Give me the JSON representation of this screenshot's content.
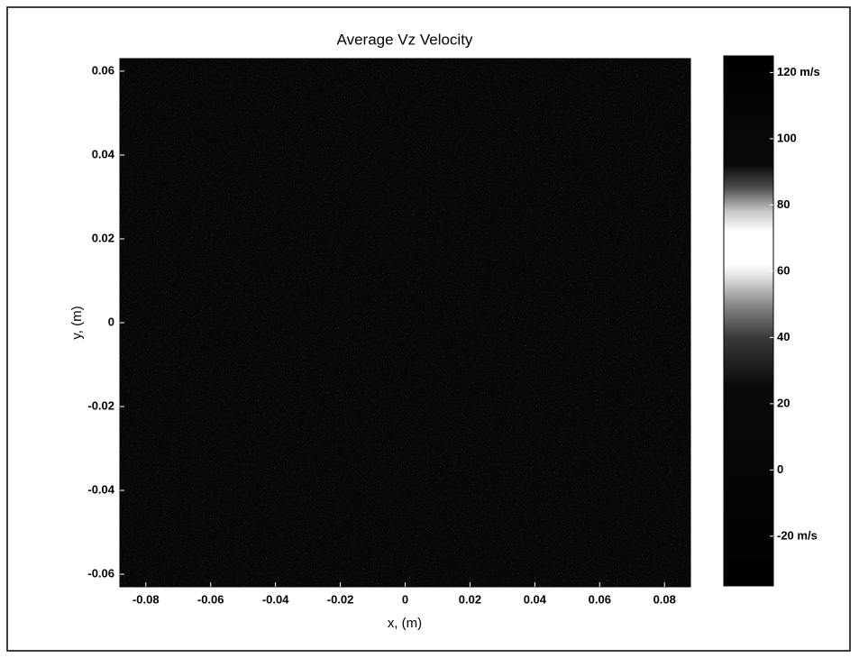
{
  "chart_data": {
    "type": "image",
    "title": "Average Vz Velocity",
    "xlabel": "x, (m)",
    "ylabel": "y, (m)",
    "xlim": [
      -0.088,
      0.088
    ],
    "ylim": [
      -0.063,
      0.063
    ],
    "xticks": [
      -0.08,
      -0.06,
      -0.04,
      -0.02,
      0,
      0.02,
      0.04,
      0.06,
      0.08
    ],
    "yticks": [
      -0.06,
      -0.04,
      -0.02,
      0,
      0.02,
      0.04,
      0.06
    ],
    "clim": [
      -35,
      125
    ],
    "cticks": [
      {
        "value": -20,
        "label": "-20 m/s"
      },
      0,
      20,
      40,
      60,
      80,
      100,
      {
        "value": 120,
        "label": "120 m/s"
      }
    ],
    "colormap": [
      {
        "value": -35,
        "color": "#000000"
      },
      {
        "value": 25,
        "color": "#0a0a0a"
      },
      {
        "value": 40,
        "color": "#3a3a3a"
      },
      {
        "value": 50,
        "color": "#8a8a8a"
      },
      {
        "value": 58,
        "color": "#dddddd"
      },
      {
        "value": 62,
        "color": "#ffffff"
      },
      {
        "value": 72,
        "color": "#ffffff"
      },
      {
        "value": 78,
        "color": "#c8c8c8"
      },
      {
        "value": 85,
        "color": "#505050"
      },
      {
        "value": 92,
        "color": "#0a0a0a"
      },
      {
        "value": 125,
        "color": "#000000"
      }
    ],
    "field_color": "#070707"
  }
}
